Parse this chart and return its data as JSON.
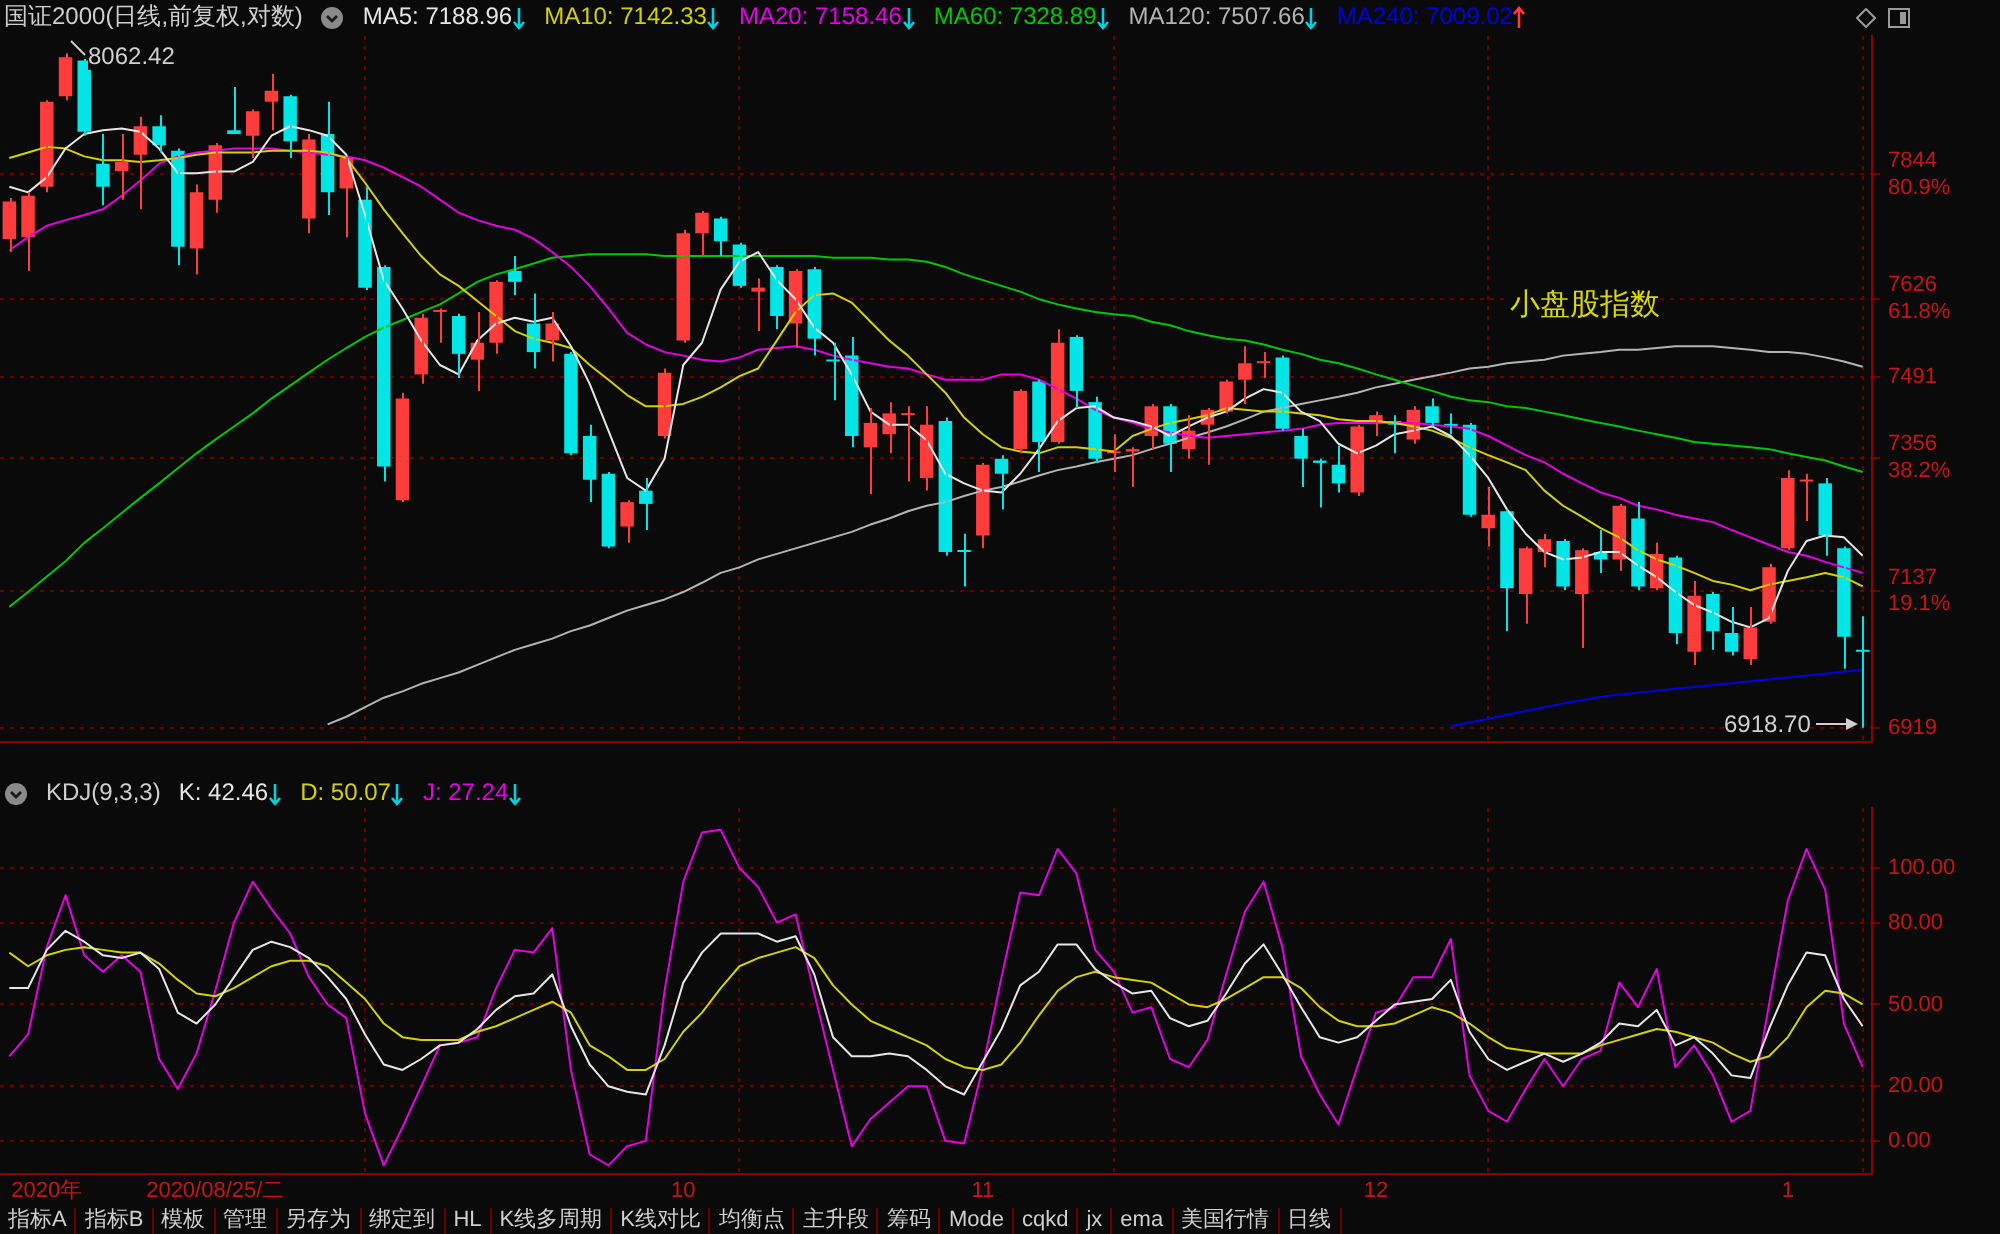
{
  "chart_data": [
    {
      "type": "candlestick",
      "title": "国证2000(日线,前复权,对数)",
      "categories": [
        null,
        null,
        null,
        null,
        null,
        null,
        null,
        null,
        null,
        null,
        null,
        null,
        null,
        null,
        null,
        null,
        null,
        null,
        null,
        null,
        null,
        null,
        null,
        null,
        null,
        null,
        null,
        null,
        null,
        null,
        null,
        null,
        null,
        null,
        null,
        null,
        null,
        null,
        null,
        null,
        null,
        null,
        null,
        null,
        null,
        null,
        null,
        null,
        null,
        null,
        null,
        null,
        null,
        null,
        null,
        null,
        null,
        null,
        null,
        null,
        null,
        null,
        null,
        null,
        null,
        null,
        null,
        null,
        null,
        null,
        null,
        null,
        null,
        null,
        null,
        null,
        null,
        null,
        null,
        null,
        null,
        null,
        null,
        null,
        null,
        null,
        null,
        null,
        null,
        null,
        null,
        null,
        null,
        null,
        null,
        null,
        null,
        null,
        null,
        null
      ],
      "ohlc": [
        [
          7730,
          7802,
          7707,
          7796
        ],
        [
          7733,
          7812,
          7674,
          7806
        ],
        [
          7822,
          7977,
          7812,
          7974
        ],
        [
          7984,
          8062.42,
          7977,
          8055
        ],
        [
          8049,
          8052,
          7913,
          7920
        ],
        [
          7863,
          7916,
          7789,
          7822
        ],
        [
          7850,
          7916,
          7799,
          7866
        ],
        [
          7879,
          7947,
          7782,
          7930
        ],
        [
          7930,
          7950,
          7883,
          7896
        ],
        [
          7886,
          7890,
          7684,
          7716
        ],
        [
          7713,
          7826,
          7668,
          7812
        ],
        [
          7799,
          7900,
          7776,
          7896
        ],
        [
          7923,
          8001,
          7916,
          7916
        ],
        [
          7913,
          7960,
          7873,
          7957
        ],
        [
          7974,
          8025,
          7923,
          7994
        ],
        [
          7984,
          7987,
          7873,
          7903
        ],
        [
          7766,
          7916,
          7740,
          7906
        ],
        [
          7916,
          7974,
          7772,
          7812
        ],
        [
          7819,
          7876,
          7733,
          7873
        ],
        [
          7799,
          7822,
          7641,
          7645
        ],
        [
          7681,
          7684,
          7316,
          7341
        ],
        [
          7285,
          7465,
          7282,
          7455
        ],
        [
          7496,
          7600,
          7480,
          7593
        ],
        [
          7603,
          7609,
          7550,
          7606
        ],
        [
          7596,
          7600,
          7490,
          7531
        ],
        [
          7521,
          7603,
          7468,
          7550
        ],
        [
          7550,
          7658,
          7531,
          7655
        ],
        [
          7674,
          7700,
          7632,
          7655
        ],
        [
          7583,
          7635,
          7506,
          7534
        ],
        [
          7554,
          7603,
          7518,
          7583
        ],
        [
          7531,
          7534,
          7360,
          7363
        ],
        [
          7392,
          7411,
          7282,
          7319
        ],
        [
          7329,
          7332,
          7206,
          7209
        ],
        [
          7242,
          7285,
          7215,
          7282
        ],
        [
          7301,
          7322,
          7236,
          7279
        ],
        [
          7392,
          7506,
          7388,
          7499
        ],
        [
          7554,
          7746,
          7550,
          7740
        ],
        [
          7740,
          7779,
          7700,
          7776
        ],
        [
          7766,
          7769,
          7700,
          7726
        ],
        [
          7720,
          7723,
          7645,
          7648
        ],
        [
          7638,
          7661,
          7570,
          7645
        ],
        [
          7681,
          7684,
          7573,
          7596
        ],
        [
          7583,
          7677,
          7541,
          7674
        ],
        [
          7677,
          7681,
          7528,
          7557
        ],
        [
          7521,
          7550,
          7452,
          7518
        ],
        [
          7528,
          7560,
          7373,
          7392
        ],
        [
          7373,
          7439,
          7295,
          7414
        ],
        [
          7395,
          7449,
          7363,
          7430
        ],
        [
          7427,
          7442,
          7316,
          7430
        ],
        [
          7322,
          7442,
          7301,
          7411
        ],
        [
          7417,
          7423,
          7194,
          7200
        ],
        [
          7203,
          7230,
          7144,
          7200
        ],
        [
          7227,
          7347,
          7206,
          7344
        ],
        [
          7354,
          7360,
          7270,
          7329
        ],
        [
          7370,
          7471,
          7363,
          7468
        ],
        [
          7484,
          7487,
          7332,
          7382
        ],
        [
          7382,
          7573,
          7379,
          7550
        ],
        [
          7560,
          7563,
          7439,
          7468
        ],
        [
          7449,
          7458,
          7347,
          7354
        ],
        [
          7363,
          7395,
          7332,
          7366
        ],
        [
          7366,
          7373,
          7307,
          7370
        ],
        [
          7392,
          7446,
          7370,
          7442
        ],
        [
          7442,
          7446,
          7332,
          7379
        ],
        [
          7370,
          7427,
          7354,
          7401
        ],
        [
          7411,
          7439,
          7344,
          7436
        ],
        [
          7433,
          7487,
          7430,
          7484
        ],
        [
          7487,
          7544,
          7446,
          7515
        ],
        [
          7515,
          7534,
          7490,
          7518
        ],
        [
          7525,
          7528,
          7401,
          7404
        ],
        [
          7392,
          7404,
          7307,
          7354
        ],
        [
          7351,
          7354,
          7273,
          7347
        ],
        [
          7344,
          7376,
          7298,
          7313
        ],
        [
          7298,
          7411,
          7292,
          7408
        ],
        [
          7414,
          7433,
          7392,
          7427
        ],
        [
          7417,
          7427,
          7363,
          7411
        ],
        [
          7386,
          7442,
          7379,
          7436
        ],
        [
          7442,
          7455,
          7408,
          7414
        ],
        [
          7412,
          7430,
          7395,
          7409
        ],
        [
          7411,
          7414,
          7258,
          7261
        ],
        [
          7239,
          7307,
          7209,
          7261
        ],
        [
          7267,
          7270,
          7072,
          7141
        ],
        [
          7132,
          7209,
          7084,
          7206
        ],
        [
          7200,
          7230,
          7175,
          7221
        ],
        [
          7218,
          7221,
          7138,
          7144
        ],
        [
          7132,
          7206,
          7045,
          7203
        ],
        [
          7200,
          7236,
          7166,
          7188
        ],
        [
          7188,
          7279,
          7169,
          7276
        ],
        [
          7255,
          7282,
          7138,
          7144
        ],
        [
          7141,
          7215,
          7138,
          7197
        ],
        [
          7191,
          7194,
          7051,
          7069
        ],
        [
          7039,
          7153,
          7018,
          7129
        ],
        [
          7132,
          7135,
          7042,
          7072
        ],
        [
          7069,
          7111,
          7033,
          7039
        ],
        [
          7027,
          7111,
          7018,
          7078
        ],
        [
          7087,
          7181,
          7084,
          7175
        ],
        [
          7206,
          7335,
          7203,
          7322
        ],
        [
          7316,
          7329,
          7251,
          7319
        ],
        [
          7313,
          7322,
          7194,
          7227
        ],
        [
          7206,
          7209,
          7012,
          7063
        ],
        [
          7042,
          7096,
          6918.7,
          7039
        ]
      ],
      "colors": [
        "#ff3c3c",
        "#ff3c3c",
        "#ff3c3c",
        "#ff3c3c",
        "#00e5e5",
        "#00e5e5",
        "#ff3c3c",
        "#ff3c3c",
        "#00e5e5",
        "#00e5e5",
        "#ff3c3c",
        "#ff3c3c",
        "#00e5e5",
        "#ff3c3c",
        "#ff3c3c",
        "#00e5e5",
        "#ff3c3c",
        "#00e5e5",
        "#ff3c3c",
        "#00e5e5",
        "#00e5e5",
        "#ff3c3c",
        "#ff3c3c",
        "#ff3c3c",
        "#00e5e5",
        "#ff3c3c",
        "#ff3c3c",
        "#00e5e5",
        "#00e5e5",
        "#ff3c3c",
        "#00e5e5",
        "#00e5e5",
        "#00e5e5",
        "#ff3c3c",
        "#00e5e5",
        "#ff3c3c",
        "#ff3c3c",
        "#ff3c3c",
        "#00e5e5",
        "#00e5e5",
        "#ff3c3c",
        "#00e5e5",
        "#ff3c3c",
        "#00e5e5",
        "#00e5e5",
        "#00e5e5",
        "#ff3c3c",
        "#ff3c3c",
        "#ff3c3c",
        "#ff3c3c",
        "#00e5e5",
        "#00e5e5",
        "#ff3c3c",
        "#00e5e5",
        "#ff3c3c",
        "#00e5e5",
        "#ff3c3c",
        "#00e5e5",
        "#00e5e5",
        "#ff3c3c",
        "#ff3c3c",
        "#ff3c3c",
        "#00e5e5",
        "#ff3c3c",
        "#ff3c3c",
        "#ff3c3c",
        "#ff3c3c",
        "#ff3c3c",
        "#00e5e5",
        "#00e5e5",
        "#00e5e5",
        "#00e5e5",
        "#ff3c3c",
        "#ff3c3c",
        "#00e5e5",
        "#ff3c3c",
        "#00e5e5",
        "#00e5e5",
        "#00e5e5",
        "#ff3c3c",
        "#00e5e5",
        "#ff3c3c",
        "#ff3c3c",
        "#00e5e5",
        "#ff3c3c",
        "#00e5e5",
        "#ff3c3c",
        "#00e5e5",
        "#ff3c3c",
        "#00e5e5",
        "#ff3c3c",
        "#00e5e5",
        "#00e5e5",
        "#ff3c3c",
        "#ff3c3c",
        "#ff3c3c",
        "#ff3c3c",
        "#00e5e5",
        "#00e5e5",
        "#00e5e5"
      ],
      "series": [
        {
          "type": "line",
          "name": "MA5: 7188.96",
          "color": "#e6e6e6",
          "values": [
            7822,
            7812,
            7839,
            7890,
            7916,
            7923,
            7926,
            7920,
            7890,
            7846,
            7846,
            7849,
            7849,
            7866,
            7913,
            7930,
            7923,
            7913,
            7879,
            7772,
            7658,
            7609,
            7554,
            7512,
            7496,
            7554,
            7583,
            7593,
            7586,
            7593,
            7544,
            7480,
            7401,
            7322,
            7301,
            7354,
            7512,
            7550,
            7642,
            7690,
            7707,
            7658,
            7625,
            7576,
            7550,
            7496,
            7433,
            7411,
            7411,
            7385,
            7329,
            7313,
            7301,
            7298,
            7329,
            7370,
            7417,
            7439,
            7442,
            7423,
            7417,
            7408,
            7392,
            7408,
            7423,
            7433,
            7455,
            7471,
            7465,
            7433,
            7417,
            7379,
            7363,
            7376,
            7395,
            7401,
            7408,
            7392,
            7360,
            7322,
            7270,
            7230,
            7200,
            7188,
            7191,
            7200,
            7200,
            7178,
            7159,
            7135,
            7114,
            7102,
            7087,
            7078,
            7093,
            7169,
            7218,
            7227,
            7224,
            7194
          ]
        },
        {
          "type": "line",
          "name": "MA10: 7142.33",
          "color": "#d2d200",
          "values": [
            7873,
            7883,
            7893,
            7890,
            7876,
            7869,
            7869,
            7866,
            7869,
            7873,
            7879,
            7883,
            7883,
            7883,
            7886,
            7886,
            7886,
            7883,
            7873,
            7829,
            7782,
            7740,
            7700,
            7668,
            7648,
            7622,
            7596,
            7570,
            7557,
            7550,
            7541,
            7512,
            7487,
            7461,
            7442,
            7442,
            7446,
            7458,
            7474,
            7493,
            7506,
            7554,
            7603,
            7632,
            7635,
            7619,
            7586,
            7554,
            7528,
            7496,
            7465,
            7423,
            7395,
            7373,
            7366,
            7363,
            7373,
            7373,
            7370,
            7366,
            7392,
            7404,
            7414,
            7420,
            7427,
            7439,
            7436,
            7433,
            7433,
            7430,
            7427,
            7420,
            7417,
            7417,
            7414,
            7408,
            7401,
            7389,
            7373,
            7360,
            7348,
            7335,
            7301,
            7276,
            7258,
            7239,
            7224,
            7203,
            7188,
            7178,
            7166,
            7153,
            7147,
            7138,
            7147,
            7153,
            7159,
            7166,
            7159,
            7144
          ]
        },
        {
          "type": "line",
          "name": "MA20: 7158.46",
          "color": "#e600e6",
          "values": [
            7710,
            7733,
            7753,
            7763,
            7772,
            7782,
            7806,
            7833,
            7863,
            7876,
            7883,
            7886,
            7890,
            7890,
            7890,
            7886,
            7883,
            7879,
            7876,
            7869,
            7856,
            7839,
            7822,
            7799,
            7776,
            7763,
            7753,
            7746,
            7730,
            7707,
            7681,
            7648,
            7609,
            7567,
            7547,
            7534,
            7528,
            7521,
            7518,
            7525,
            7538,
            7541,
            7544,
            7538,
            7528,
            7521,
            7515,
            7509,
            7506,
            7496,
            7487,
            7487,
            7487,
            7496,
            7496,
            7487,
            7471,
            7455,
            7436,
            7423,
            7414,
            7404,
            7398,
            7392,
            7389,
            7392,
            7395,
            7398,
            7401,
            7404,
            7411,
            7414,
            7414,
            7414,
            7414,
            7414,
            7411,
            7408,
            7404,
            7392,
            7376,
            7360,
            7348,
            7329,
            7313,
            7298,
            7289,
            7276,
            7270,
            7261,
            7255,
            7249,
            7236,
            7224,
            7212,
            7200,
            7194,
            7184,
            7175,
            7166
          ]
        },
        {
          "type": "line",
          "name": "MA60: 7328.89",
          "color": "#00c800",
          "values": [
            7111,
            7135,
            7160,
            7185,
            7215,
            7239,
            7264,
            7289,
            7313,
            7338,
            7363,
            7386,
            7408,
            7430,
            7455,
            7477,
            7499,
            7521,
            7541,
            7560,
            7576,
            7589,
            7603,
            7616,
            7635,
            7655,
            7668,
            7677,
            7687,
            7697,
            7700,
            7703,
            7703,
            7703,
            7703,
            7700,
            7700,
            7700,
            7700,
            7700,
            7700,
            7700,
            7700,
            7700,
            7697,
            7697,
            7697,
            7694,
            7694,
            7690,
            7681,
            7668,
            7658,
            7648,
            7638,
            7625,
            7616,
            7609,
            7603,
            7599,
            7596,
            7586,
            7580,
            7570,
            7563,
            7557,
            7554,
            7547,
            7538,
            7531,
            7521,
            7515,
            7506,
            7496,
            7487,
            7477,
            7468,
            7458,
            7452,
            7449,
            7442,
            7439,
            7433,
            7427,
            7420,
            7414,
            7408,
            7401,
            7395,
            7389,
            7382,
            7379,
            7376,
            7373,
            7370,
            7363,
            7357,
            7351,
            7341,
            7332
          ]
        },
        {
          "type": "line",
          "name": "MA120: 7507.66",
          "color": "#b4b4b4",
          "values": [
            null,
            null,
            null,
            null,
            null,
            null,
            null,
            null,
            null,
            null,
            null,
            null,
            null,
            null,
            null,
            null,
            null,
            6924,
            6936,
            6951,
            6966,
            6976,
            6988,
            6997,
            7006,
            7018,
            7030,
            7042,
            7051,
            7060,
            7072,
            7081,
            7093,
            7105,
            7114,
            7123,
            7135,
            7150,
            7166,
            7175,
            7188,
            7197,
            7206,
            7215,
            7224,
            7233,
            7245,
            7255,
            7267,
            7276,
            7282,
            7292,
            7301,
            7307,
            7316,
            7326,
            7335,
            7341,
            7348,
            7354,
            7360,
            7370,
            7379,
            7389,
            7398,
            7408,
            7420,
            7433,
            7439,
            7446,
            7452,
            7458,
            7465,
            7474,
            7480,
            7487,
            7493,
            7499,
            7506,
            7509,
            7515,
            7518,
            7521,
            7528,
            7531,
            7534,
            7538,
            7538,
            7541,
            7544,
            7544,
            7544,
            7541,
            7538,
            7534,
            7534,
            7531,
            7525,
            7518,
            7509
          ]
        },
        {
          "type": "line",
          "name": "MA240: 7009.02",
          "color": "#0000e6",
          "values": [
            null,
            null,
            null,
            null,
            null,
            null,
            null,
            null,
            null,
            null,
            null,
            null,
            null,
            null,
            null,
            null,
            null,
            null,
            null,
            null,
            null,
            null,
            null,
            null,
            null,
            null,
            null,
            null,
            null,
            null,
            null,
            null,
            null,
            null,
            null,
            null,
            null,
            null,
            null,
            null,
            null,
            null,
            null,
            null,
            null,
            null,
            null,
            null,
            null,
            null,
            null,
            null,
            null,
            null,
            null,
            null,
            null,
            null,
            null,
            null,
            null,
            null,
            null,
            null,
            null,
            null,
            null,
            null,
            null,
            null,
            null,
            null,
            null,
            null,
            null,
            null,
            null,
            6921,
            6927,
            6933,
            6939,
            6945,
            6951,
            6957,
            6962,
            6967,
            6971,
            6974,
            6977,
            6980,
            6983,
            6986,
            6989,
            6992,
            6995,
            6998,
            7001,
            7004,
            7007,
            7010
          ]
        }
      ],
      "log": true,
      "ylim": [
        6897,
        8094
      ],
      "yticks": [
        {
          "value": 7844,
          "label": "7844\n80.9%"
        },
        {
          "value": 7626,
          "label": "7626\n61.8%"
        },
        7491,
        {
          "value": 7356,
          "label": "7356\n38.2%"
        },
        {
          "value": 7137,
          "label": "7137\n19.1%"
        },
        6919
      ],
      "grid": true,
      "legend": "top left",
      "tick_labels": "y",
      "annotations": [
        "8062.42",
        "6918.70",
        "小盘股指数"
      ]
    },
    {
      "type": "line",
      "title": "KDJ(9,3,3)",
      "categories": [
        null,
        null,
        "2020年",
        null,
        null,
        null,
        null,
        null,
        null,
        null,
        null,
        "2020/08/25/二",
        null,
        null,
        null,
        null,
        null,
        null,
        null,
        null,
        null,
        null,
        null,
        null,
        null,
        null,
        null,
        null,
        null,
        null,
        null,
        null,
        null,
        null,
        null,
        null,
        "10",
        null,
        null,
        null,
        null,
        null,
        null,
        null,
        null,
        null,
        null,
        null,
        null,
        null,
        null,
        null,
        "11",
        null,
        null,
        null,
        null,
        null,
        null,
        null,
        null,
        null,
        null,
        null,
        null,
        null,
        null,
        null,
        null,
        null,
        null,
        null,
        null,
        "12",
        null,
        null,
        null,
        null,
        null,
        null,
        null,
        null,
        null,
        null,
        null,
        null,
        null,
        null,
        null,
        null,
        null,
        null,
        null,
        null,
        null,
        "1",
        null,
        null,
        null,
        null
      ],
      "series": [
        {
          "name": "K: 42.46",
          "color": "#e6e6e6",
          "values": [
            56,
            56,
            70,
            77,
            73,
            68,
            67,
            69,
            63,
            47,
            43,
            50,
            60,
            70,
            73,
            71,
            67,
            60,
            52,
            39,
            28,
            26,
            30,
            35,
            36,
            41,
            48,
            53,
            54,
            61,
            42,
            28,
            20,
            18,
            17,
            35,
            58,
            69,
            76,
            76,
            76,
            73,
            75,
            61,
            38,
            31,
            31,
            32,
            31,
            26,
            20,
            17,
            29,
            41,
            57,
            62,
            72,
            72,
            63,
            58,
            54,
            55,
            45,
            42,
            44,
            54,
            65,
            72,
            61,
            49,
            38,
            36,
            38,
            44,
            50,
            51,
            52,
            59,
            40,
            30,
            26,
            29,
            32,
            29,
            32,
            36,
            43,
            42,
            48,
            35,
            38,
            32,
            24,
            23,
            41,
            57,
            69,
            68,
            52,
            42
          ]
        },
        {
          "name": "D: 50.07",
          "color": "#d2d200",
          "values": [
            69,
            64,
            68,
            70,
            71,
            70,
            69,
            69,
            65,
            59,
            54,
            53,
            56,
            60,
            64,
            66,
            66,
            64,
            58,
            52,
            43,
            38,
            37,
            37,
            37,
            40,
            42,
            45,
            48,
            51,
            47,
            35,
            31,
            26,
            26,
            30,
            40,
            47,
            56,
            64,
            67,
            69,
            71,
            67,
            57,
            50,
            44,
            41,
            38,
            35,
            30,
            27,
            26,
            28,
            36,
            46,
            55,
            60,
            62,
            60,
            59,
            58,
            54,
            50,
            49,
            52,
            56,
            60,
            60,
            56,
            49,
            44,
            42,
            42,
            43,
            46,
            49,
            47,
            43,
            38,
            34,
            33,
            32,
            32,
            32,
            35,
            37,
            39,
            41,
            40,
            38,
            36,
            32,
            29,
            31,
            38,
            49,
            55,
            54,
            50
          ]
        },
        {
          "name": "J: 27.24",
          "color": "#e600e6",
          "values": [
            31,
            39,
            71,
            90,
            68,
            62,
            68,
            62,
            30,
            19,
            32,
            55,
            80,
            95,
            85,
            76,
            60,
            50,
            45,
            10,
            -9,
            5,
            20,
            35,
            36,
            38,
            56,
            70,
            69,
            78,
            26,
            -5,
            -9,
            -2,
            0,
            55,
            95,
            113,
            114,
            100,
            93,
            80,
            83,
            54,
            26,
            -2,
            8,
            14,
            20,
            20,
            0,
            -1,
            27,
            60,
            91,
            90,
            107,
            98,
            70,
            62,
            47,
            49,
            30,
            27,
            37,
            61,
            84,
            95,
            71,
            31,
            17,
            6,
            27,
            47,
            49,
            60,
            60,
            74,
            24,
            11,
            7,
            19,
            30,
            20,
            30,
            33,
            58,
            49,
            63,
            27,
            35,
            24,
            7,
            11,
            50,
            88,
            107,
            92,
            43,
            27
          ]
        }
      ],
      "ylim": [
        -12,
        122
      ],
      "yticks": [
        {
          "value": 100,
          "label": "100.00"
        },
        {
          "value": 80,
          "label": "80.00"
        },
        {
          "value": 50,
          "label": "50.00"
        },
        {
          "value": 20,
          "label": "20.00"
        },
        {
          "value": 0,
          "label": "0.00"
        }
      ],
      "grid": true,
      "legend": "top left",
      "annotations": [
        "指标A",
        "指标B",
        "模板",
        "管理",
        "另存为",
        "绑定到",
        "HL",
        "K线多周期",
        "K线对比",
        "均衡点",
        "主升段",
        "筹码",
        "Mode",
        "cqkd",
        "jx",
        "ema",
        "美国行情",
        "日线"
      ]
    }
  ]
}
